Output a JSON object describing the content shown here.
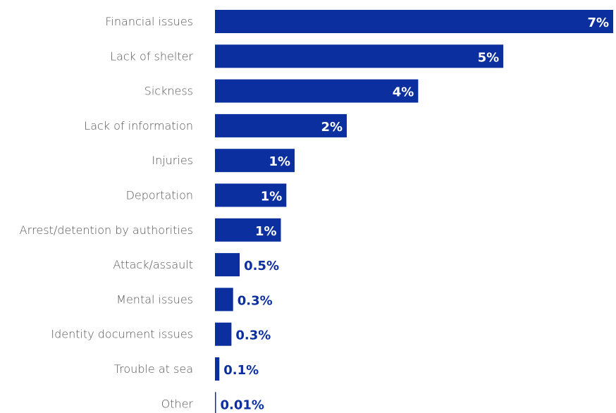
{
  "colors": {
    "bar": "#0b2f9f",
    "category_text": "#555555",
    "outside_value_text": "#0b2f9f",
    "inside_value_text": "#ffffff"
  },
  "chart_data": {
    "type": "bar",
    "orientation": "horizontal",
    "categories": [
      "Financial issues",
      "Lack of shelter",
      "Sickness",
      "Lack of information",
      "Injuries",
      "Deportation",
      "Arrest/detention by authorities",
      "Attack/assault",
      "Mental issues",
      "Identity document issues",
      "Trouble at sea",
      "Other"
    ],
    "values": [
      7.25,
      5.25,
      3.7,
      2.4,
      1.45,
      1.3,
      1.2,
      0.45,
      0.33,
      0.3,
      0.08,
      0.01
    ],
    "value_labels": [
      "7%",
      "5%",
      "4%",
      "2%",
      "1%",
      "1%",
      "1%",
      "0.5%",
      "0.3%",
      "0.3%",
      "0.1%",
      "0.01%"
    ],
    "title": "",
    "xlabel": "",
    "ylabel": "",
    "xlim": [
      0,
      7.25
    ],
    "grid": false,
    "legend": "none"
  }
}
